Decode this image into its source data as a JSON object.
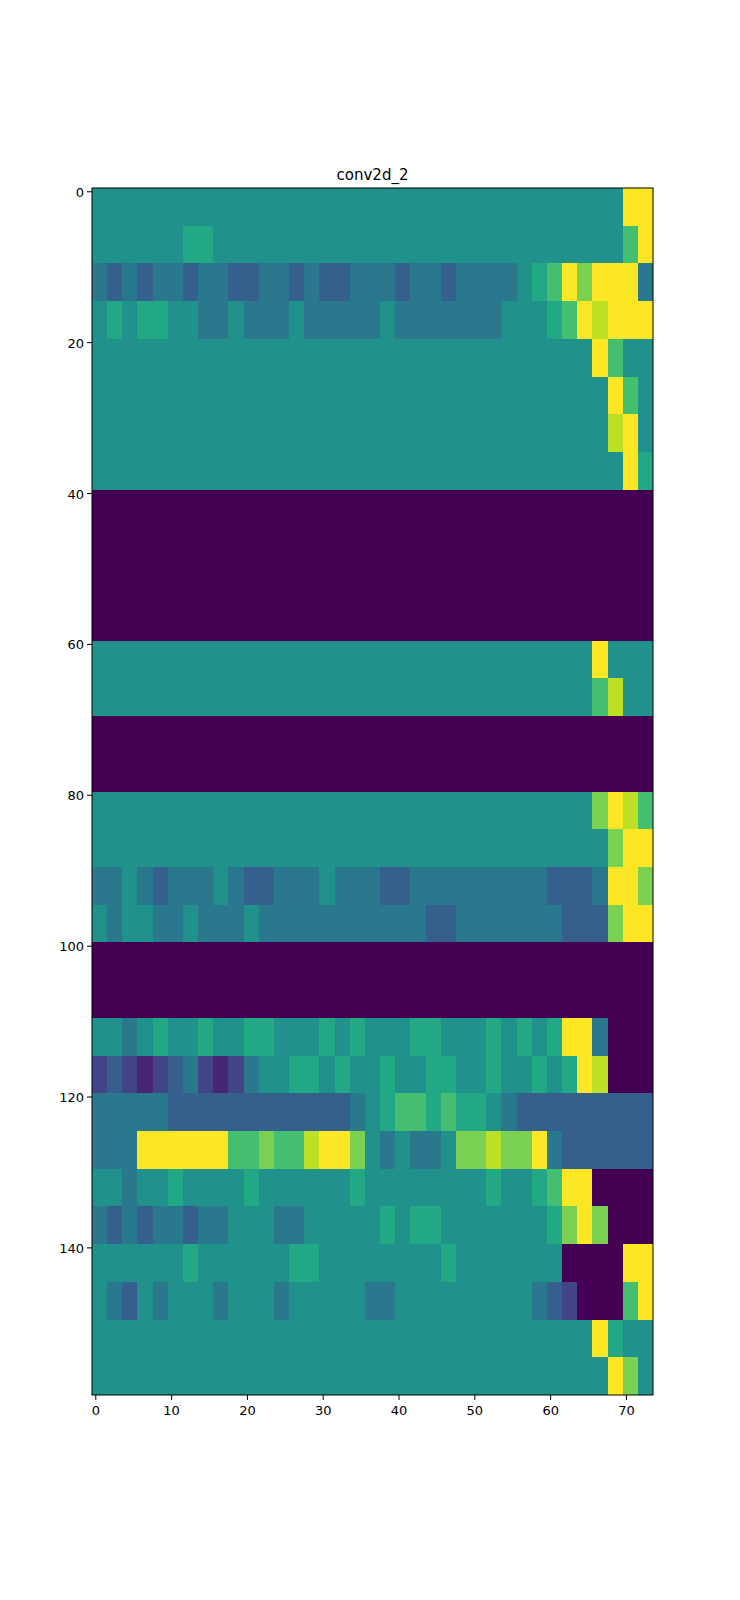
{
  "chart_data": {
    "type": "heatmap",
    "title": "conv2d_2",
    "x_edges": [
      -0.5,
      1.5,
      3.5,
      5.5,
      7.5,
      9.5,
      11.5,
      13.5,
      15.5,
      17.5,
      19.5,
      21.5,
      23.5,
      25.5,
      27.5,
      29.5,
      31.5,
      33.5,
      35.5,
      37.5,
      39.5,
      41.5,
      43.5,
      45.5,
      47.5,
      49.5,
      51.5,
      53.5,
      55.5,
      57.5,
      59.5,
      61.5,
      63.5,
      65.5,
      67.5,
      69.5,
      71.5,
      73.5
    ],
    "y_edges": [
      -0.5,
      4.5,
      9.5,
      14.5,
      19.5,
      24.5,
      29.5,
      34.5,
      39.5,
      44.5,
      49.5,
      54.5,
      59.5,
      64.5,
      69.5,
      74.5,
      79.5,
      84.5,
      89.5,
      94.5,
      99.5,
      104.5,
      109.5,
      114.5,
      119.5,
      124.5,
      129.5,
      134.5,
      139.5,
      144.5,
      149.5,
      154.5,
      159.5
    ],
    "cells": [
      [
        5,
        5,
        5,
        5,
        5,
        5,
        5,
        5,
        5,
        5,
        5,
        5,
        5,
        5,
        5,
        5,
        5,
        5,
        5,
        5,
        5,
        5,
        5,
        5,
        5,
        5,
        5,
        5,
        5,
        5,
        5,
        5,
        5,
        5,
        5,
        10,
        10
      ],
      [
        5,
        5,
        5,
        5,
        5,
        5,
        6,
        6,
        5,
        5,
        5,
        5,
        5,
        5,
        5,
        5,
        5,
        5,
        5,
        5,
        5,
        5,
        5,
        5,
        5,
        5,
        5,
        5,
        5,
        5,
        5,
        5,
        5,
        5,
        5,
        7,
        10
      ],
      [
        4,
        3,
        4,
        3,
        4,
        4,
        3,
        4,
        4,
        3,
        3,
        4,
        4,
        3,
        4,
        3,
        3,
        4,
        4,
        4,
        3,
        4,
        4,
        3,
        4,
        4,
        4,
        4,
        5,
        6,
        7,
        10,
        8,
        10,
        10,
        10,
        4
      ],
      [
        5,
        6,
        5,
        6,
        6,
        5,
        5,
        4,
        4,
        5,
        4,
        4,
        4,
        5,
        4,
        4,
        4,
        4,
        4,
        5,
        4,
        4,
        4,
        4,
        4,
        4,
        4,
        5,
        5,
        5,
        6,
        7,
        10,
        9,
        10,
        10,
        10
      ],
      [
        5,
        5,
        5,
        5,
        5,
        5,
        5,
        5,
        5,
        5,
        5,
        5,
        5,
        5,
        5,
        5,
        5,
        5,
        5,
        5,
        5,
        5,
        5,
        5,
        5,
        5,
        5,
        5,
        5,
        5,
        5,
        5,
        5,
        10,
        7,
        5,
        5
      ],
      [
        5,
        5,
        5,
        5,
        5,
        5,
        5,
        5,
        5,
        5,
        5,
        5,
        5,
        5,
        5,
        5,
        5,
        5,
        5,
        5,
        5,
        5,
        5,
        5,
        5,
        5,
        5,
        5,
        5,
        5,
        5,
        5,
        5,
        5,
        10,
        7,
        5
      ],
      [
        5,
        5,
        5,
        5,
        5,
        5,
        5,
        5,
        5,
        5,
        5,
        5,
        5,
        5,
        5,
        5,
        5,
        5,
        5,
        5,
        5,
        5,
        5,
        5,
        5,
        5,
        5,
        5,
        5,
        5,
        5,
        5,
        5,
        5,
        9,
        10,
        5
      ],
      [
        5,
        5,
        5,
        5,
        5,
        5,
        5,
        5,
        5,
        5,
        5,
        5,
        5,
        5,
        5,
        5,
        5,
        5,
        5,
        5,
        5,
        5,
        5,
        5,
        5,
        5,
        5,
        5,
        5,
        5,
        5,
        5,
        5,
        5,
        5,
        10,
        6
      ],
      [
        0,
        0,
        0,
        0,
        0,
        0,
        0,
        0,
        0,
        0,
        0,
        0,
        0,
        0,
        0,
        0,
        0,
        0,
        0,
        0,
        0,
        0,
        0,
        0,
        0,
        0,
        0,
        0,
        0,
        0,
        0,
        0,
        0,
        0,
        0,
        0,
        0
      ],
      [
        0,
        0,
        0,
        0,
        0,
        0,
        0,
        0,
        0,
        0,
        0,
        0,
        0,
        0,
        0,
        0,
        0,
        0,
        0,
        0,
        0,
        0,
        0,
        0,
        0,
        0,
        0,
        0,
        0,
        0,
        0,
        0,
        0,
        0,
        0,
        0,
        0
      ],
      [
        0,
        0,
        0,
        0,
        0,
        0,
        0,
        0,
        0,
        0,
        0,
        0,
        0,
        0,
        0,
        0,
        0,
        0,
        0,
        0,
        0,
        0,
        0,
        0,
        0,
        0,
        0,
        0,
        0,
        0,
        0,
        0,
        0,
        0,
        0,
        0,
        0
      ],
      [
        0,
        0,
        0,
        0,
        0,
        0,
        0,
        0,
        0,
        0,
        0,
        0,
        0,
        0,
        0,
        0,
        0,
        0,
        0,
        0,
        0,
        0,
        0,
        0,
        0,
        0,
        0,
        0,
        0,
        0,
        0,
        0,
        0,
        0,
        0,
        0,
        0
      ],
      [
        5,
        5,
        5,
        5,
        5,
        5,
        5,
        5,
        5,
        5,
        5,
        5,
        5,
        5,
        5,
        5,
        5,
        5,
        5,
        5,
        5,
        5,
        5,
        5,
        5,
        5,
        5,
        5,
        5,
        5,
        5,
        5,
        5,
        10,
        5,
        5,
        5
      ],
      [
        5,
        5,
        5,
        5,
        5,
        5,
        5,
        5,
        5,
        5,
        5,
        5,
        5,
        5,
        5,
        5,
        5,
        5,
        5,
        5,
        5,
        5,
        5,
        5,
        5,
        5,
        5,
        5,
        5,
        5,
        5,
        5,
        5,
        7,
        9,
        5,
        5
      ],
      [
        0,
        0,
        0,
        0,
        0,
        0,
        0,
        0,
        0,
        0,
        0,
        0,
        0,
        0,
        0,
        0,
        0,
        0,
        0,
        0,
        0,
        0,
        0,
        0,
        0,
        0,
        0,
        0,
        0,
        0,
        0,
        0,
        0,
        0,
        0,
        0,
        0
      ],
      [
        0,
        0,
        0,
        0,
        0,
        0,
        0,
        0,
        0,
        0,
        0,
        0,
        0,
        0,
        0,
        0,
        0,
        0,
        0,
        0,
        0,
        0,
        0,
        0,
        0,
        0,
        0,
        0,
        0,
        0,
        0,
        0,
        0,
        0,
        0,
        0,
        0
      ],
      [
        5,
        5,
        5,
        5,
        5,
        5,
        5,
        5,
        5,
        5,
        5,
        5,
        5,
        5,
        5,
        5,
        5,
        5,
        5,
        5,
        5,
        5,
        5,
        5,
        5,
        5,
        5,
        5,
        5,
        5,
        5,
        5,
        5,
        8,
        10,
        9,
        7
      ],
      [
        5,
        5,
        5,
        5,
        5,
        5,
        5,
        5,
        5,
        5,
        5,
        5,
        5,
        5,
        5,
        5,
        5,
        5,
        5,
        5,
        5,
        5,
        5,
        5,
        5,
        5,
        5,
        5,
        5,
        5,
        5,
        5,
        5,
        5,
        8,
        10,
        10
      ],
      [
        4,
        4,
        5,
        4,
        3,
        4,
        4,
        4,
        5,
        4,
        3,
        3,
        4,
        4,
        4,
        5,
        4,
        4,
        4,
        3,
        3,
        4,
        4,
        4,
        4,
        4,
        4,
        4,
        4,
        4,
        3,
        3,
        3,
        4,
        10,
        10,
        8
      ],
      [
        5,
        4,
        5,
        5,
        4,
        4,
        5,
        4,
        4,
        4,
        5,
        4,
        4,
        4,
        4,
        4,
        4,
        4,
        4,
        4,
        4,
        4,
        3,
        3,
        4,
        4,
        4,
        4,
        4,
        4,
        4,
        3,
        3,
        3,
        8,
        10,
        10
      ],
      [
        0,
        0,
        0,
        0,
        0,
        0,
        0,
        0,
        0,
        0,
        0,
        0,
        0,
        0,
        0,
        0,
        0,
        0,
        0,
        0,
        0,
        0,
        0,
        0,
        0,
        0,
        0,
        0,
        0,
        0,
        0,
        0,
        0,
        0,
        0,
        0,
        0
      ],
      [
        0,
        0,
        0,
        0,
        0,
        0,
        0,
        0,
        0,
        0,
        0,
        0,
        0,
        0,
        0,
        0,
        0,
        0,
        0,
        0,
        0,
        0,
        0,
        0,
        0,
        0,
        0,
        0,
        0,
        0,
        0,
        0,
        0,
        0,
        0,
        0,
        0
      ],
      [
        5,
        5,
        4,
        5,
        6,
        5,
        5,
        6,
        5,
        5,
        6,
        6,
        5,
        5,
        5,
        6,
        5,
        6,
        5,
        5,
        5,
        6,
        6,
        5,
        5,
        5,
        6,
        5,
        6,
        5,
        6,
        10,
        10,
        4,
        0,
        0,
        0
      ],
      [
        2,
        3,
        2,
        1,
        2,
        3,
        4,
        2,
        1,
        2,
        4,
        5,
        5,
        6,
        6,
        5,
        6,
        5,
        5,
        6,
        5,
        5,
        6,
        6,
        5,
        5,
        6,
        5,
        5,
        6,
        5,
        6,
        10,
        9,
        0,
        0,
        0
      ],
      [
        4,
        4,
        4,
        4,
        4,
        3,
        3,
        3,
        3,
        3,
        3,
        3,
        3,
        3,
        3,
        3,
        3,
        4,
        5,
        6,
        7,
        7,
        6,
        7,
        6,
        6,
        5,
        4,
        3,
        3,
        3,
        3,
        3,
        3,
        3,
        3,
        3
      ],
      [
        4,
        4,
        4,
        10,
        10,
        10,
        10,
        10,
        10,
        7,
        7,
        8,
        7,
        7,
        9,
        10,
        10,
        8,
        5,
        4,
        5,
        4,
        4,
        5,
        8,
        8,
        9,
        8,
        8,
        10,
        4,
        3,
        3,
        3,
        3,
        3,
        3
      ],
      [
        5,
        5,
        4,
        5,
        5,
        6,
        5,
        5,
        5,
        5,
        6,
        5,
        5,
        5,
        5,
        5,
        5,
        6,
        5,
        5,
        5,
        5,
        5,
        5,
        5,
        5,
        6,
        5,
        5,
        6,
        7,
        10,
        10,
        0,
        0,
        0,
        0
      ],
      [
        4,
        3,
        4,
        3,
        4,
        4,
        3,
        4,
        4,
        5,
        5,
        5,
        4,
        4,
        5,
        5,
        5,
        5,
        5,
        6,
        5,
        6,
        6,
        5,
        5,
        5,
        5,
        5,
        5,
        5,
        6,
        8,
        10,
        8,
        0,
        0,
        0
      ],
      [
        5,
        5,
        5,
        5,
        5,
        5,
        6,
        5,
        5,
        5,
        5,
        5,
        5,
        6,
        6,
        5,
        5,
        5,
        5,
        5,
        5,
        5,
        5,
        6,
        5,
        5,
        5,
        5,
        5,
        5,
        5,
        0,
        0,
        0,
        0,
        10,
        10
      ],
      [
        5,
        4,
        3,
        5,
        4,
        5,
        5,
        5,
        4,
        5,
        5,
        5,
        4,
        5,
        5,
        5,
        5,
        5,
        4,
        4,
        5,
        5,
        5,
        5,
        5,
        5,
        5,
        5,
        5,
        4,
        3,
        2,
        0,
        0,
        0,
        7,
        10
      ],
      [
        5,
        5,
        5,
        5,
        5,
        5,
        5,
        5,
        5,
        5,
        5,
        5,
        5,
        5,
        5,
        5,
        5,
        5,
        5,
        5,
        5,
        5,
        5,
        5,
        5,
        5,
        5,
        5,
        5,
        5,
        5,
        5,
        5,
        10,
        6,
        5,
        5
      ],
      [
        5,
        5,
        5,
        5,
        5,
        5,
        5,
        5,
        5,
        5,
        5,
        5,
        5,
        5,
        5,
        5,
        5,
        5,
        5,
        5,
        5,
        5,
        5,
        5,
        5,
        5,
        5,
        5,
        5,
        5,
        5,
        5,
        5,
        5,
        10,
        8,
        5
      ]
    ],
    "color_range": [
      0,
      10
    ],
    "xlim": [
      -0.5,
      73.5
    ],
    "ylim": [
      159.5,
      -0.5
    ],
    "xticks": [
      0,
      10,
      20,
      30,
      40,
      50,
      60,
      70
    ],
    "yticks": [
      0,
      20,
      40,
      60,
      80,
      100,
      120,
      140
    ]
  }
}
